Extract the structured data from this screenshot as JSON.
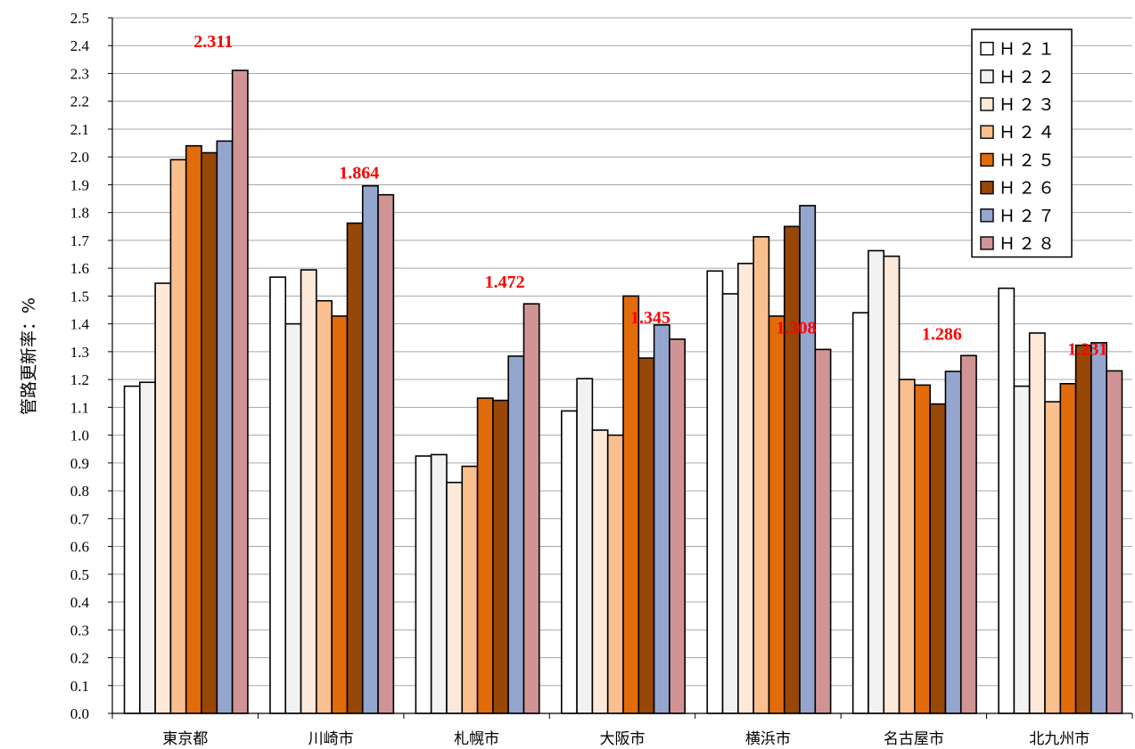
{
  "chart_data": {
    "type": "bar",
    "ylabel": "管路更新率：%",
    "ylim": [
      0,
      2.5
    ],
    "ytick_step": 0.1,
    "grid": true,
    "legend_position": "top-right",
    "categories": [
      "東京都",
      "川崎市",
      "札幌市",
      "大阪市",
      "横浜市",
      "名古屋市",
      "北九州市"
    ],
    "series": [
      {
        "name": "Ｈ２１",
        "color": "#ffffff",
        "values": [
          1.176,
          1.568,
          0.925,
          1.087,
          1.59,
          1.44,
          1.528
        ]
      },
      {
        "name": "Ｈ２２",
        "color": "#f2f2f2",
        "values": [
          1.19,
          1.4,
          0.93,
          1.203,
          1.508,
          1.663,
          1.176
        ]
      },
      {
        "name": "Ｈ２３",
        "color": "#fde9d9",
        "values": [
          1.546,
          1.594,
          0.83,
          1.018,
          1.617,
          1.643,
          1.367
        ]
      },
      {
        "name": "Ｈ２４",
        "color": "#fabf8f",
        "values": [
          1.99,
          1.483,
          0.888,
          1.0,
          1.713,
          1.2,
          1.12
        ]
      },
      {
        "name": "Ｈ２５",
        "color": "#e26b0a",
        "values": [
          2.04,
          1.428,
          1.133,
          1.5,
          1.428,
          1.18,
          1.185
        ]
      },
      {
        "name": "Ｈ２６",
        "color": "#974706",
        "values": [
          2.015,
          1.762,
          1.125,
          1.277,
          1.75,
          1.112,
          1.323
        ]
      },
      {
        "name": "Ｈ２７",
        "color": "#95a6ce",
        "values": [
          2.057,
          1.896,
          1.284,
          1.396,
          1.825,
          1.229,
          1.332
        ]
      },
      {
        "name": "Ｈ２８",
        "color": "#d09494",
        "values": [
          2.311,
          1.864,
          1.472,
          1.345,
          1.308,
          1.286,
          1.231
        ]
      }
    ],
    "data_labels": [
      "2.311",
      "1.864",
      "1.472",
      "1.345",
      "1.308",
      "1.286",
      "1.231"
    ],
    "data_label_color": "#ff0000",
    "grid_color": "#a6a6a6"
  }
}
